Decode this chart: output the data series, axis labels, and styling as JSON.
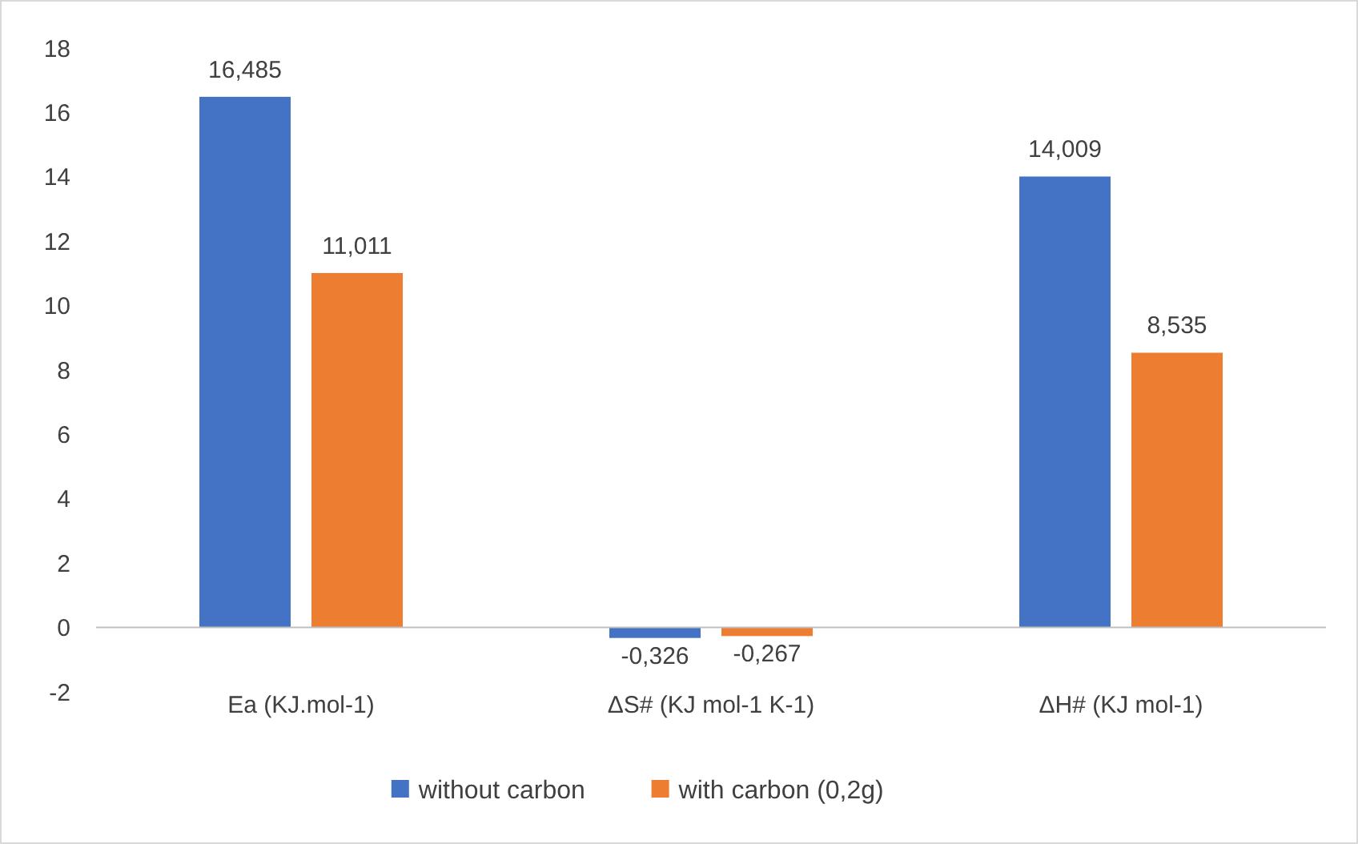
{
  "chart_data": {
    "type": "bar",
    "categories": [
      "Ea (KJ.mol-1)",
      "ΔS# (KJ mol-1 K-1)",
      "ΔH# (KJ mol-1)"
    ],
    "series": [
      {
        "name": "without carbon",
        "color": "#4472c4",
        "values": [
          16.485,
          -0.326,
          14.009
        ],
        "value_labels": [
          "16,485",
          "-0,326",
          "14,009"
        ]
      },
      {
        "name": "with carbon (0,2g)",
        "color": "#ed7d31",
        "values": [
          11.011,
          -0.267,
          8.535
        ],
        "value_labels": [
          "11,011",
          "-0,267",
          "8,535"
        ]
      }
    ],
    "ylim": [
      -2,
      18
    ],
    "yticks": [
      -2,
      0,
      2,
      4,
      6,
      8,
      10,
      12,
      14,
      16,
      18
    ],
    "legend": "bottom"
  }
}
